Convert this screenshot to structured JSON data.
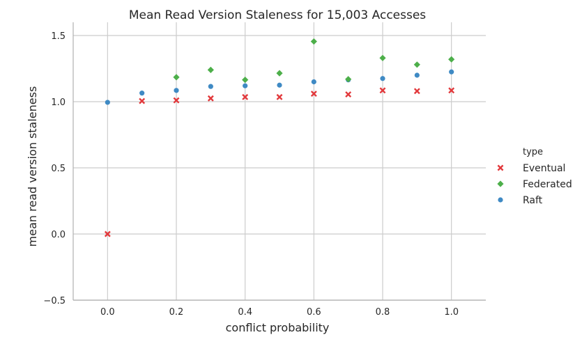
{
  "chart_data": {
    "type": "scatter",
    "title": "Mean Read Version Staleness for 15,003 Accesses",
    "xlabel": "conflict probability",
    "ylabel": "mean read version staleness",
    "xlim": [
      -0.1,
      1.1
    ],
    "ylim": [
      -0.5,
      1.6
    ],
    "xticks": [
      0.0,
      0.2,
      0.4,
      0.6,
      0.8,
      1.0
    ],
    "xtick_labels": [
      "0.0",
      "0.2",
      "0.4",
      "0.6",
      "0.8",
      "1.0"
    ],
    "yticks": [
      -0.5,
      0.0,
      0.5,
      1.0,
      1.5
    ],
    "ytick_labels": [
      "−0.5",
      "0.0",
      "0.5",
      "1.0",
      "1.5"
    ],
    "grid": true,
    "legend_title": "type",
    "legend_position": "right",
    "series": [
      {
        "name": "Eventual",
        "marker": "x",
        "color": "#e2393c",
        "x": [
          0.0,
          0.1,
          0.2,
          0.3,
          0.4,
          0.5,
          0.6,
          0.7,
          0.8,
          0.9,
          1.0
        ],
        "y": [
          0.0,
          1.005,
          1.01,
          1.025,
          1.035,
          1.035,
          1.06,
          1.055,
          1.085,
          1.08,
          1.085
        ]
      },
      {
        "name": "Federated",
        "marker": "diamond",
        "color": "#4daf4a",
        "x": [
          0.2,
          0.3,
          0.4,
          0.5,
          0.6,
          0.7,
          0.8,
          0.9,
          1.0
        ],
        "y": [
          1.185,
          1.24,
          1.165,
          1.215,
          1.455,
          1.17,
          1.33,
          1.28,
          1.32
        ]
      },
      {
        "name": "Raft",
        "marker": "circle",
        "color": "#3f8ac4",
        "x": [
          0.0,
          0.1,
          0.2,
          0.3,
          0.4,
          0.5,
          0.6,
          0.7,
          0.8,
          0.9,
          1.0
        ],
        "y": [
          0.995,
          1.065,
          1.085,
          1.115,
          1.12,
          1.125,
          1.15,
          1.165,
          1.175,
          1.2,
          1.225
        ]
      }
    ]
  }
}
